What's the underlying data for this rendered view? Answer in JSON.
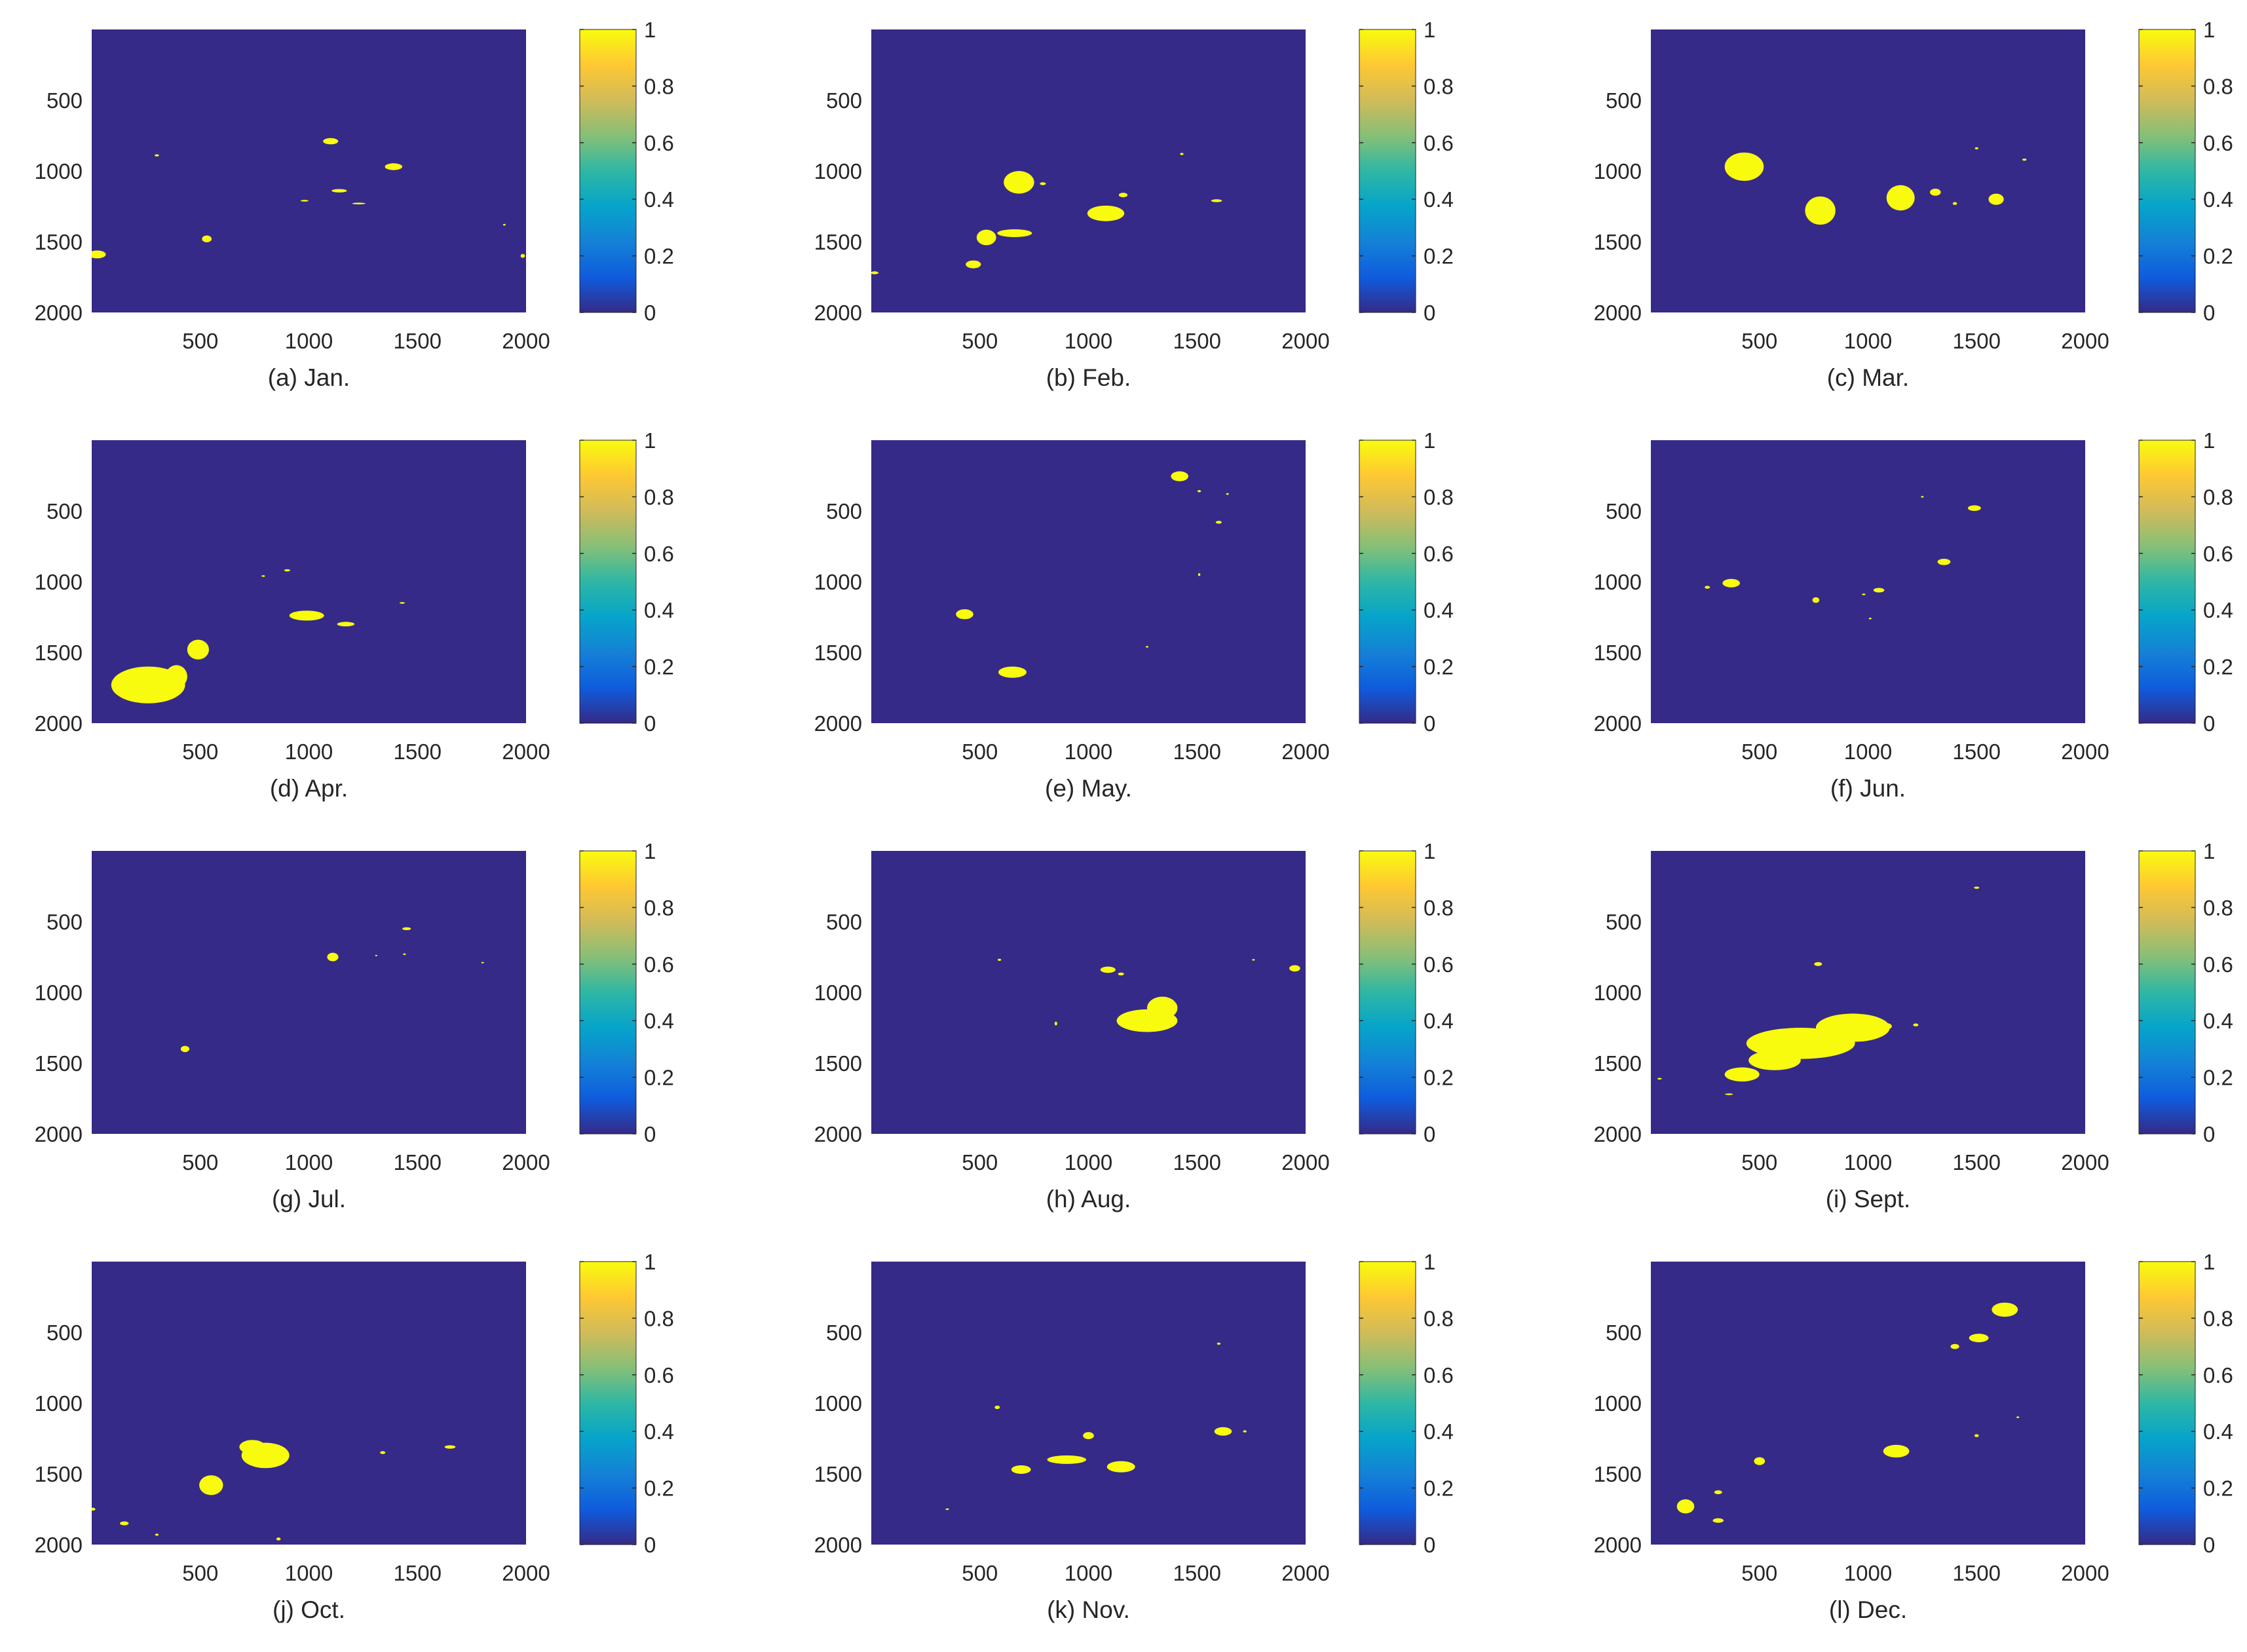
{
  "chart_data": [
    {
      "type": "heatmap",
      "caption": "(a)  Jan.",
      "x_ticks": [
        500,
        1000,
        1500,
        2000
      ],
      "y_ticks": [
        500,
        1000,
        1500,
        2000
      ],
      "xlim": [
        0,
        2000
      ],
      "ylim": [
        0,
        2000
      ],
      "colorbar_ticks": [
        "0",
        "0.2",
        "0.4",
        "0.6",
        "0.8",
        "1"
      ],
      "clim": [
        0,
        1
      ],
      "background_value": 0,
      "blobs": [
        {
          "x": 1100,
          "y": 790,
          "rx": 35,
          "ry": 22
        },
        {
          "x": 1390,
          "y": 970,
          "rx": 40,
          "ry": 24
        },
        {
          "x": 1140,
          "y": 1140,
          "rx": 35,
          "ry": 12
        },
        {
          "x": 530,
          "y": 1480,
          "rx": 22,
          "ry": 24
        },
        {
          "x": 25,
          "y": 1590,
          "rx": 40,
          "ry": 28
        },
        {
          "x": 300,
          "y": 890,
          "rx": 10,
          "ry": 8
        },
        {
          "x": 1230,
          "y": 1230,
          "rx": 30,
          "ry": 6
        },
        {
          "x": 980,
          "y": 1210,
          "rx": 18,
          "ry": 6
        },
        {
          "x": 1985,
          "y": 1600,
          "rx": 10,
          "ry": 14
        },
        {
          "x": 1900,
          "y": 1380,
          "rx": 6,
          "ry": 6
        }
      ]
    },
    {
      "type": "heatmap",
      "caption": "(b)  Feb.",
      "x_ticks": [
        500,
        1000,
        1500,
        2000
      ],
      "y_ticks": [
        500,
        1000,
        1500,
        2000
      ],
      "xlim": [
        0,
        2000
      ],
      "ylim": [
        0,
        2000
      ],
      "colorbar_ticks": [
        "0",
        "0.2",
        "0.4",
        "0.6",
        "0.8",
        "1"
      ],
      "clim": [
        0,
        1
      ],
      "background_value": 0,
      "blobs": [
        {
          "x": 680,
          "y": 1080,
          "rx": 70,
          "ry": 80
        },
        {
          "x": 1080,
          "y": 1300,
          "rx": 85,
          "ry": 55
        },
        {
          "x": 530,
          "y": 1470,
          "rx": 45,
          "ry": 55
        },
        {
          "x": 660,
          "y": 1440,
          "rx": 80,
          "ry": 28
        },
        {
          "x": 470,
          "y": 1660,
          "rx": 35,
          "ry": 28
        },
        {
          "x": 1160,
          "y": 1170,
          "rx": 20,
          "ry": 16
        },
        {
          "x": 1590,
          "y": 1210,
          "rx": 25,
          "ry": 10
        },
        {
          "x": 15,
          "y": 1720,
          "rx": 18,
          "ry": 10
        },
        {
          "x": 790,
          "y": 1090,
          "rx": 14,
          "ry": 10
        },
        {
          "x": 1430,
          "y": 880,
          "rx": 8,
          "ry": 8
        }
      ]
    },
    {
      "type": "heatmap",
      "caption": "(c)  Mar.",
      "x_ticks": [
        500,
        1000,
        1500,
        2000
      ],
      "y_ticks": [
        500,
        1000,
        1500,
        2000
      ],
      "xlim": [
        0,
        2000
      ],
      "ylim": [
        0,
        2000
      ],
      "colorbar_ticks": [
        "0",
        "0.2",
        "0.4",
        "0.6",
        "0.8",
        "1"
      ],
      "clim": [
        0,
        1
      ],
      "background_value": 0,
      "blobs": [
        {
          "x": 430,
          "y": 970,
          "rx": 90,
          "ry": 100
        },
        {
          "x": 780,
          "y": 1280,
          "rx": 70,
          "ry": 100
        },
        {
          "x": 1150,
          "y": 1190,
          "rx": 65,
          "ry": 90
        },
        {
          "x": 1590,
          "y": 1200,
          "rx": 35,
          "ry": 40
        },
        {
          "x": 1310,
          "y": 1150,
          "rx": 25,
          "ry": 25
        },
        {
          "x": 1500,
          "y": 840,
          "rx": 8,
          "ry": 8
        },
        {
          "x": 1720,
          "y": 920,
          "rx": 10,
          "ry": 8
        },
        {
          "x": 1400,
          "y": 1230,
          "rx": 10,
          "ry": 10
        }
      ]
    },
    {
      "type": "heatmap",
      "caption": "(d)  Apr.",
      "x_ticks": [
        500,
        1000,
        1500,
        2000
      ],
      "y_ticks": [
        500,
        1000,
        1500,
        2000
      ],
      "xlim": [
        0,
        2000
      ],
      "ylim": [
        0,
        2000
      ],
      "colorbar_ticks": [
        "0",
        "0.2",
        "0.4",
        "0.6",
        "0.8",
        "1"
      ],
      "clim": [
        0,
        1
      ],
      "background_value": 0,
      "blobs": [
        {
          "x": 260,
          "y": 1730,
          "rx": 170,
          "ry": 130
        },
        {
          "x": 390,
          "y": 1670,
          "rx": 50,
          "ry": 80
        },
        {
          "x": 490,
          "y": 1480,
          "rx": 50,
          "ry": 70
        },
        {
          "x": 990,
          "y": 1240,
          "rx": 80,
          "ry": 35
        },
        {
          "x": 1170,
          "y": 1300,
          "rx": 40,
          "ry": 16
        },
        {
          "x": 900,
          "y": 920,
          "rx": 14,
          "ry": 8
        },
        {
          "x": 790,
          "y": 960,
          "rx": 8,
          "ry": 6
        },
        {
          "x": 1430,
          "y": 1150,
          "rx": 12,
          "ry": 6
        }
      ]
    },
    {
      "type": "heatmap",
      "caption": "(e)  May.",
      "x_ticks": [
        500,
        1000,
        1500,
        2000
      ],
      "y_ticks": [
        500,
        1000,
        1500,
        2000
      ],
      "xlim": [
        0,
        2000
      ],
      "ylim": [
        0,
        2000
      ],
      "colorbar_ticks": [
        "0",
        "0.2",
        "0.4",
        "0.6",
        "0.8",
        "1"
      ],
      "clim": [
        0,
        1
      ],
      "background_value": 0,
      "blobs": [
        {
          "x": 1420,
          "y": 255,
          "rx": 40,
          "ry": 35
        },
        {
          "x": 430,
          "y": 1230,
          "rx": 40,
          "ry": 35
        },
        {
          "x": 650,
          "y": 1640,
          "rx": 65,
          "ry": 40
        },
        {
          "x": 1600,
          "y": 580,
          "rx": 14,
          "ry": 10
        },
        {
          "x": 1510,
          "y": 360,
          "rx": 8,
          "ry": 8
        },
        {
          "x": 1640,
          "y": 380,
          "rx": 6,
          "ry": 6
        },
        {
          "x": 1510,
          "y": 950,
          "rx": 5,
          "ry": 10
        },
        {
          "x": 1270,
          "y": 1460,
          "rx": 6,
          "ry": 6
        }
      ]
    },
    {
      "type": "heatmap",
      "caption": "(f)  Jun.",
      "x_ticks": [
        500,
        1000,
        1500,
        2000
      ],
      "y_ticks": [
        500,
        1000,
        1500,
        2000
      ],
      "xlim": [
        0,
        2000
      ],
      "ylim": [
        0,
        2000
      ],
      "colorbar_ticks": [
        "0",
        "0.2",
        "0.4",
        "0.6",
        "0.8",
        "1"
      ],
      "clim": [
        0,
        1
      ],
      "background_value": 0,
      "blobs": [
        {
          "x": 370,
          "y": 1010,
          "rx": 40,
          "ry": 30
        },
        {
          "x": 1490,
          "y": 480,
          "rx": 30,
          "ry": 20
        },
        {
          "x": 1350,
          "y": 860,
          "rx": 30,
          "ry": 22
        },
        {
          "x": 1050,
          "y": 1060,
          "rx": 25,
          "ry": 16
        },
        {
          "x": 760,
          "y": 1130,
          "rx": 16,
          "ry": 20
        },
        {
          "x": 260,
          "y": 1040,
          "rx": 12,
          "ry": 10
        },
        {
          "x": 1250,
          "y": 400,
          "rx": 6,
          "ry": 6
        },
        {
          "x": 980,
          "y": 1090,
          "rx": 8,
          "ry": 6
        },
        {
          "x": 1010,
          "y": 1260,
          "rx": 6,
          "ry": 6
        }
      ]
    },
    {
      "type": "heatmap",
      "caption": "(g)  Jul.",
      "x_ticks": [
        500,
        1000,
        1500,
        2000
      ],
      "y_ticks": [
        500,
        1000,
        1500,
        2000
      ],
      "xlim": [
        0,
        2000
      ],
      "ylim": [
        0,
        2000
      ],
      "colorbar_ticks": [
        "0",
        "0.2",
        "0.4",
        "0.6",
        "0.8",
        "1"
      ],
      "clim": [
        0,
        1
      ],
      "background_value": 0,
      "blobs": [
        {
          "x": 1110,
          "y": 750,
          "rx": 26,
          "ry": 30
        },
        {
          "x": 430,
          "y": 1400,
          "rx": 20,
          "ry": 22
        },
        {
          "x": 1450,
          "y": 550,
          "rx": 20,
          "ry": 10
        },
        {
          "x": 1440,
          "y": 730,
          "rx": 6,
          "ry": 6
        },
        {
          "x": 1310,
          "y": 740,
          "rx": 5,
          "ry": 5
        },
        {
          "x": 1800,
          "y": 790,
          "rx": 6,
          "ry": 5
        }
      ]
    },
    {
      "type": "heatmap",
      "caption": "(h)  Aug.",
      "x_ticks": [
        500,
        1000,
        1500,
        2000
      ],
      "y_ticks": [
        500,
        1000,
        1500,
        2000
      ],
      "xlim": [
        0,
        2000
      ],
      "ylim": [
        0,
        2000
      ],
      "colorbar_ticks": [
        "0",
        "0.2",
        "0.4",
        "0.6",
        "0.8",
        "1"
      ],
      "clim": [
        0,
        1
      ],
      "background_value": 0,
      "blobs": [
        {
          "x": 1270,
          "y": 1200,
          "rx": 140,
          "ry": 80
        },
        {
          "x": 1340,
          "y": 1110,
          "rx": 70,
          "ry": 80
        },
        {
          "x": 1090,
          "y": 840,
          "rx": 35,
          "ry": 22
        },
        {
          "x": 1950,
          "y": 830,
          "rx": 25,
          "ry": 22
        },
        {
          "x": 1150,
          "y": 870,
          "rx": 14,
          "ry": 10
        },
        {
          "x": 590,
          "y": 770,
          "rx": 8,
          "ry": 8
        },
        {
          "x": 850,
          "y": 1220,
          "rx": 6,
          "ry": 14
        },
        {
          "x": 1760,
          "y": 770,
          "rx": 6,
          "ry": 6
        }
      ]
    },
    {
      "type": "heatmap",
      "caption": "(i)  Sept.",
      "x_ticks": [
        500,
        1000,
        1500,
        2000
      ],
      "y_ticks": [
        500,
        1000,
        1500,
        2000
      ],
      "xlim": [
        0,
        2000
      ],
      "ylim": [
        0,
        2000
      ],
      "colorbar_ticks": [
        "0",
        "0.2",
        "0.4",
        "0.6",
        "0.8",
        "1"
      ],
      "clim": [
        0,
        1
      ],
      "background_value": 0,
      "blobs": [
        {
          "x": 690,
          "y": 1360,
          "rx": 250,
          "ry": 110
        },
        {
          "x": 930,
          "y": 1250,
          "rx": 170,
          "ry": 100
        },
        {
          "x": 570,
          "y": 1480,
          "rx": 120,
          "ry": 70
        },
        {
          "x": 420,
          "y": 1580,
          "rx": 80,
          "ry": 50
        },
        {
          "x": 770,
          "y": 800,
          "rx": 18,
          "ry": 14
        },
        {
          "x": 1500,
          "y": 260,
          "rx": 12,
          "ry": 8
        },
        {
          "x": 1080,
          "y": 1240,
          "rx": 30,
          "ry": 24
        },
        {
          "x": 1220,
          "y": 1230,
          "rx": 12,
          "ry": 10
        },
        {
          "x": 40,
          "y": 1610,
          "rx": 10,
          "ry": 6
        },
        {
          "x": 360,
          "y": 1720,
          "rx": 18,
          "ry": 6
        }
      ]
    },
    {
      "type": "heatmap",
      "caption": "(j)  Oct.",
      "x_ticks": [
        500,
        1000,
        1500,
        2000
      ],
      "y_ticks": [
        500,
        1000,
        1500,
        2000
      ],
      "xlim": [
        0,
        2000
      ],
      "ylim": [
        0,
        2000
      ],
      "colorbar_ticks": [
        "0",
        "0.2",
        "0.4",
        "0.6",
        "0.8",
        "1"
      ],
      "clim": [
        0,
        1
      ],
      "background_value": 0,
      "blobs": [
        {
          "x": 800,
          "y": 1370,
          "rx": 110,
          "ry": 90
        },
        {
          "x": 740,
          "y": 1310,
          "rx": 60,
          "ry": 50
        },
        {
          "x": 550,
          "y": 1580,
          "rx": 55,
          "ry": 70
        },
        {
          "x": 150,
          "y": 1850,
          "rx": 20,
          "ry": 14
        },
        {
          "x": 5,
          "y": 1750,
          "rx": 12,
          "ry": 10
        },
        {
          "x": 1650,
          "y": 1310,
          "rx": 25,
          "ry": 12
        },
        {
          "x": 1340,
          "y": 1350,
          "rx": 12,
          "ry": 10
        },
        {
          "x": 860,
          "y": 1960,
          "rx": 10,
          "ry": 10
        },
        {
          "x": 300,
          "y": 1930,
          "rx": 8,
          "ry": 8
        }
      ]
    },
    {
      "type": "heatmap",
      "caption": "(k)  Nov.",
      "x_ticks": [
        500,
        1000,
        1500,
        2000
      ],
      "y_ticks": [
        500,
        1000,
        1500,
        2000
      ],
      "xlim": [
        0,
        2000
      ],
      "ylim": [
        0,
        2000
      ],
      "colorbar_ticks": [
        "0",
        "0.2",
        "0.4",
        "0.6",
        "0.8",
        "1"
      ],
      "clim": [
        0,
        1
      ],
      "background_value": 0,
      "blobs": [
        {
          "x": 900,
          "y": 1400,
          "rx": 90,
          "ry": 30
        },
        {
          "x": 1000,
          "y": 1230,
          "rx": 25,
          "ry": 25
        },
        {
          "x": 1150,
          "y": 1450,
          "rx": 65,
          "ry": 40
        },
        {
          "x": 690,
          "y": 1470,
          "rx": 45,
          "ry": 30
        },
        {
          "x": 1620,
          "y": 1200,
          "rx": 40,
          "ry": 30
        },
        {
          "x": 580,
          "y": 1030,
          "rx": 12,
          "ry": 12
        },
        {
          "x": 1600,
          "y": 580,
          "rx": 8,
          "ry": 8
        },
        {
          "x": 1720,
          "y": 1200,
          "rx": 8,
          "ry": 8
        },
        {
          "x": 350,
          "y": 1750,
          "rx": 8,
          "ry": 6
        }
      ]
    },
    {
      "type": "heatmap",
      "caption": "(l)  Dec.",
      "x_ticks": [
        500,
        1000,
        1500,
        2000
      ],
      "y_ticks": [
        500,
        1000,
        1500,
        2000
      ],
      "xlim": [
        0,
        2000
      ],
      "ylim": [
        0,
        2000
      ],
      "colorbar_ticks": [
        "0",
        "0.2",
        "0.4",
        "0.6",
        "0.8",
        "1"
      ],
      "clim": [
        0,
        1
      ],
      "background_value": 0,
      "blobs": [
        {
          "x": 1630,
          "y": 340,
          "rx": 60,
          "ry": 50
        },
        {
          "x": 1510,
          "y": 540,
          "rx": 45,
          "ry": 30
        },
        {
          "x": 1400,
          "y": 600,
          "rx": 20,
          "ry": 18
        },
        {
          "x": 1130,
          "y": 1340,
          "rx": 60,
          "ry": 45
        },
        {
          "x": 500,
          "y": 1410,
          "rx": 25,
          "ry": 28
        },
        {
          "x": 160,
          "y": 1730,
          "rx": 40,
          "ry": 50
        },
        {
          "x": 310,
          "y": 1830,
          "rx": 25,
          "ry": 16
        },
        {
          "x": 310,
          "y": 1630,
          "rx": 18,
          "ry": 14
        },
        {
          "x": 1500,
          "y": 1230,
          "rx": 10,
          "ry": 10
        },
        {
          "x": 1690,
          "y": 1100,
          "rx": 6,
          "ry": 6
        }
      ]
    }
  ],
  "colors": {
    "background_value_color": "#352A87",
    "foreground_value_color": "#F9FB0E",
    "colormap": [
      "#352A87",
      "#0F5CDD",
      "#1481D6",
      "#06A4CA",
      "#2EB7A4",
      "#87BF77",
      "#D1BB59",
      "#FEC832",
      "#F9FB0E"
    ]
  }
}
